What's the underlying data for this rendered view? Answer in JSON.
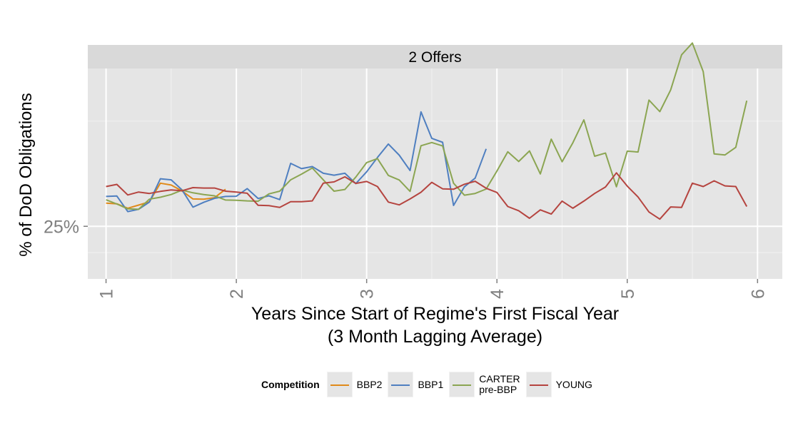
{
  "chart_data": {
    "type": "line",
    "facet_title": "2 Offers",
    "xlabel": "Years Since Start of Regime's First Fiscal Year\n(3 Month Lagging Average)",
    "ylabel": "% of DoD Obligations",
    "xlim": [
      0.86,
      6.19
    ],
    "ylim": [
      0,
      100
    ],
    "x_ticks": [
      1,
      2,
      3,
      4,
      5,
      6
    ],
    "x_tick_labels": [
      "1",
      "2",
      "3",
      "4",
      "5",
      "6"
    ],
    "y_ticks": [
      25
    ],
    "y_tick_labels": [
      "25%"
    ],
    "grid": true,
    "legend": {
      "title": "Competition",
      "position": "bottom"
    },
    "series": [
      {
        "name": "BBP2",
        "color": "#e08a1a",
        "x": [
          1.0,
          1.083,
          1.167,
          1.25,
          1.333,
          1.417,
          1.5,
          1.583,
          1.667,
          1.75,
          1.833,
          1.917
        ],
        "y": [
          36,
          35.7,
          33.6,
          35.1,
          36.6,
          45.5,
          44.6,
          41.8,
          38,
          37.9,
          38.6,
          42.6
        ]
      },
      {
        "name": "BBP1",
        "color": "#4f7fc0",
        "x": [
          1.0,
          1.083,
          1.167,
          1.25,
          1.333,
          1.417,
          1.5,
          1.583,
          1.667,
          1.75,
          1.833,
          1.917,
          2.0,
          2.083,
          2.167,
          2.25,
          2.333,
          2.417,
          2.5,
          2.583,
          2.667,
          2.75,
          2.833,
          2.917,
          3.0,
          3.083,
          3.167,
          3.25,
          3.333,
          3.417,
          3.5,
          3.583,
          3.667,
          3.75,
          3.833,
          3.917
        ],
        "y": [
          39.2,
          39.4,
          32,
          33.1,
          36.5,
          47.6,
          47.1,
          42.3,
          34.1,
          36.4,
          38.3,
          39.2,
          39.3,
          42.9,
          38.2,
          39.5,
          37.7,
          54.9,
          52.4,
          53.4,
          50.2,
          49.3,
          50.2,
          45.3,
          50.9,
          57.7,
          64.1,
          58.8,
          51.5,
          79.4,
          66.8,
          64.9,
          34.9,
          43.8,
          47.9,
          61.8
        ]
      },
      {
        "name": "CARTER\npre-BBP",
        "color": "#8ba552",
        "x": [
          1.0,
          1.083,
          1.167,
          1.25,
          1.333,
          1.417,
          1.5,
          1.583,
          1.667,
          1.75,
          1.833,
          1.917,
          2.0,
          2.083,
          2.167,
          2.25,
          2.333,
          2.417,
          2.5,
          2.583,
          2.667,
          2.75,
          2.833,
          2.917,
          3.0,
          3.083,
          3.167,
          3.25,
          3.333,
          3.417,
          3.5,
          3.583,
          3.667,
          3.75,
          3.833,
          3.917,
          4.0,
          4.083,
          4.167,
          4.25,
          4.333,
          4.417,
          4.5,
          4.583,
          4.667,
          4.75,
          4.833,
          4.917,
          5.0,
          5.083,
          5.167,
          5.25,
          5.333,
          5.417,
          5.5,
          5.583,
          5.667,
          5.75,
          5.833,
          5.917
        ],
        "y": [
          37.6,
          35.6,
          33.3,
          33.1,
          37.9,
          38.8,
          40.1,
          42.2,
          40.9,
          40.1,
          39.5,
          37.5,
          37.4,
          37.1,
          36.9,
          40.4,
          41.7,
          47.1,
          49.8,
          52.7,
          47.1,
          41.7,
          42.5,
          48.4,
          55.3,
          57.2,
          49.2,
          47,
          41.6,
          63.3,
          64.8,
          63.2,
          45.5,
          39.8,
          40.6,
          42.7,
          51.3,
          60.4,
          55.8,
          60.8,
          49.9,
          66.4,
          55.7,
          64.7,
          75.6,
          58.3,
          59.8,
          43.8,
          60.7,
          60.3,
          85,
          79.5,
          89.8,
          106.5,
          112.1,
          98.5,
          59.4,
          58.9,
          62.5,
          84.7
        ]
      },
      {
        "name": "YOUNG",
        "color": "#b5443f",
        "x": [
          1.0,
          1.083,
          1.167,
          1.25,
          1.333,
          1.417,
          1.5,
          1.583,
          1.667,
          1.75,
          1.833,
          1.917,
          2.0,
          2.083,
          2.167,
          2.25,
          2.333,
          2.417,
          2.5,
          2.583,
          2.667,
          2.75,
          2.833,
          2.917,
          3.0,
          3.083,
          3.167,
          3.25,
          3.333,
          3.417,
          3.5,
          3.583,
          3.667,
          3.75,
          3.833,
          3.917,
          4.0,
          4.083,
          4.167,
          4.25,
          4.333,
          4.417,
          4.5,
          4.583,
          4.667,
          4.75,
          4.833,
          4.917,
          5.0,
          5.083,
          5.167,
          5.25,
          5.333,
          5.417,
          5.5,
          5.583,
          5.667,
          5.75,
          5.833,
          5.917
        ],
        "y": [
          43.9,
          44.9,
          39.9,
          41.3,
          40.6,
          41.6,
          42.3,
          41.9,
          43.4,
          43.2,
          43.2,
          41.7,
          41.3,
          40.7,
          35,
          34.8,
          34,
          36.7,
          36.7,
          37.1,
          45.5,
          46.1,
          48.5,
          45.4,
          46.3,
          43.9,
          36.5,
          35.2,
          38,
          41.2,
          45.9,
          42.8,
          42.6,
          45,
          46.4,
          43.1,
          41.1,
          34.4,
          32.4,
          28.8,
          32.8,
          30.8,
          37,
          33.6,
          37,
          40.6,
          43.7,
          50.4,
          44.1,
          38.9,
          31.8,
          28.4,
          34.2,
          34,
          45.5,
          43.9,
          46.6,
          44.2,
          43.9,
          34.4
        ]
      }
    ]
  }
}
